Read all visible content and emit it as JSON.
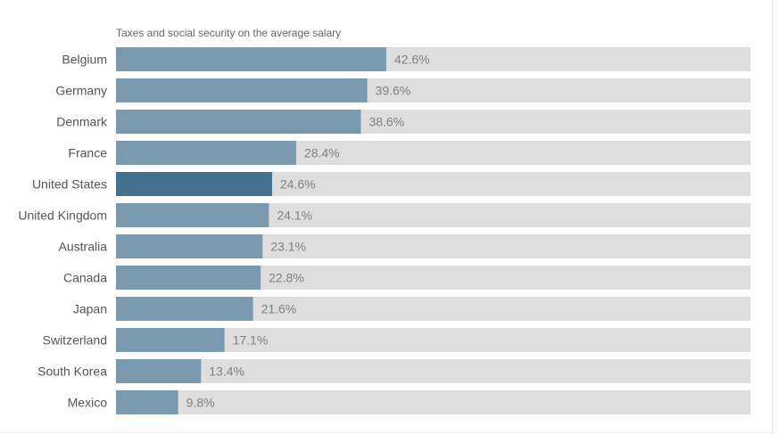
{
  "chart_data": {
    "type": "bar",
    "orientation": "horizontal",
    "title": "Taxes and social security on the average salary",
    "xlabel": "",
    "ylabel": "",
    "xlim": [
      0,
      100
    ],
    "grid": false,
    "legend": "none",
    "value_suffix": "%",
    "categories": [
      "Belgium",
      "Germany",
      "Denmark",
      "France",
      "United States",
      "United Kingdom",
      "Australia",
      "Canada",
      "Japan",
      "Switzerland",
      "South Korea",
      "Mexico"
    ],
    "values": [
      42.6,
      39.6,
      38.6,
      28.4,
      24.6,
      24.1,
      23.1,
      22.8,
      21.6,
      17.1,
      13.4,
      9.8
    ],
    "value_labels": [
      "42.6%",
      "39.6%",
      "38.6%",
      "28.4%",
      "24.6%",
      "24.1%",
      "23.1%",
      "22.8%",
      "21.6%",
      "17.1%",
      "13.4%",
      "9.8%"
    ],
    "highlight": "United States",
    "colors": {
      "bar": "#7a9ab0",
      "highlight": "#44708f",
      "track": "#dedede",
      "value_text": "#808080",
      "category_text": "#555555"
    }
  }
}
